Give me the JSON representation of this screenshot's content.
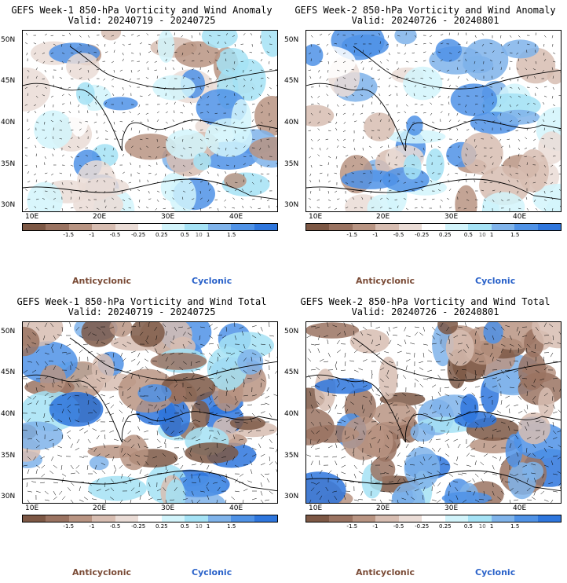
{
  "colorbar": {
    "ticks": [
      "-1.5",
      "-1",
      "-0.5",
      "-0.25",
      "0.25",
      "0.5",
      "1",
      "1.5"
    ],
    "unit": "10",
    "colors": [
      "#7d5845",
      "#9a7361",
      "#b89482",
      "#d7bdb1",
      "#eadcd6",
      "#ffffff",
      "#d2f4fb",
      "#a5e2f5",
      "#7fb3ea",
      "#4f92e6",
      "#2e76dd"
    ]
  },
  "legend": {
    "anticyclonic": "Anticyclonic",
    "cyclonic": "Cyclonic"
  },
  "axes": {
    "lat_labels": [
      "50N",
      "45N",
      "40N",
      "35N",
      "30N"
    ],
    "lon_labels": [
      "10E",
      "20E",
      "30E",
      "40E"
    ],
    "lat_range": [
      29,
      51
    ],
    "lon_range": [
      9,
      45
    ]
  },
  "panels": [
    {
      "id": "week1-anomaly",
      "title_line1": "GEFS Week-1 850-hPa Vorticity and Wind Anomaly",
      "title_line2": "Valid: 20240719 - 20240725",
      "field": "anomaly"
    },
    {
      "id": "week2-anomaly",
      "title_line1": "GEFS Week-2 850-hPa Vorticity and Wind Anomaly",
      "title_line2": "Valid: 20240726 - 20240801",
      "field": "anomaly"
    },
    {
      "id": "week1-total",
      "title_line1": "GEFS Week-1 850-hPa Vorticity and Wind Total",
      "title_line2": "Valid: 20240719 - 20240725",
      "field": "total"
    },
    {
      "id": "week2-total",
      "title_line1": "GEFS Week-2 850-hPa Vorticity and Wind Total",
      "title_line2": "Valid: 20240726 - 20240801",
      "field": "total"
    }
  ]
}
